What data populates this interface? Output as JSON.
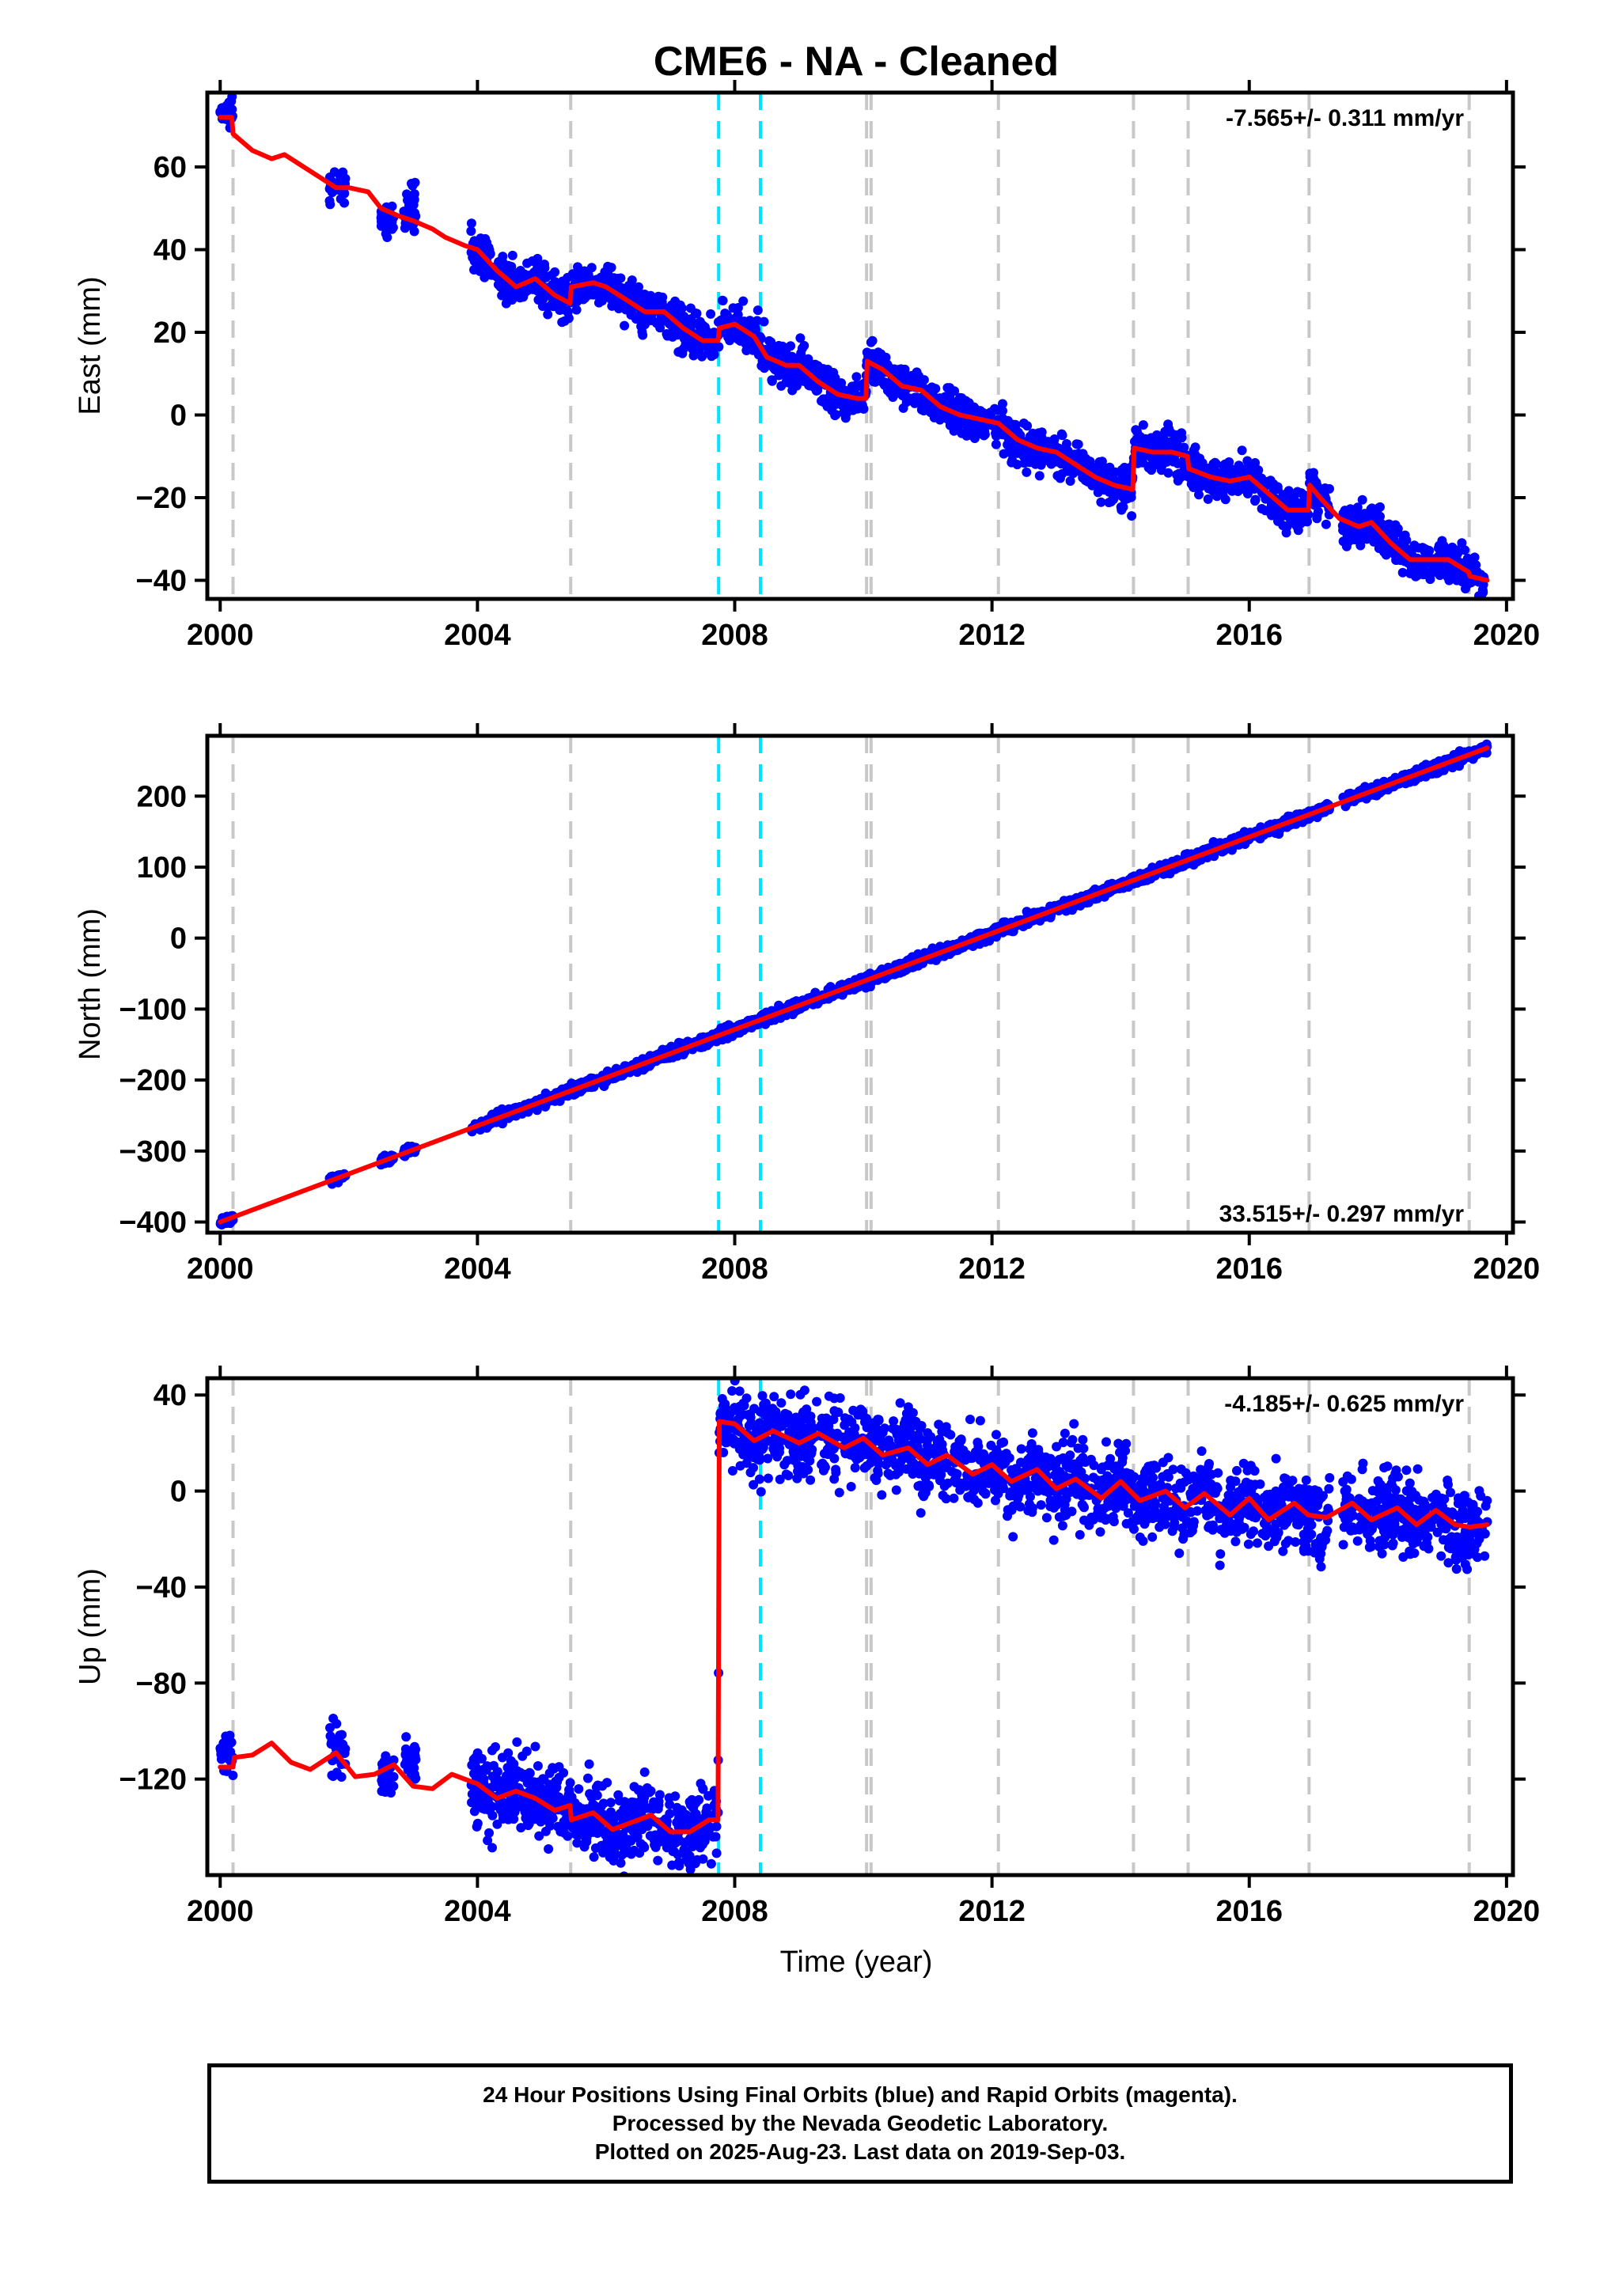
{
  "title": "CME6  - NA - Cleaned",
  "xlabel": "Time (year)",
  "footer": {
    "line1": "24 Hour Positions Using Final Orbits (blue) and Rapid Orbits (magenta).",
    "line2": "Processed by the Nevada Geodetic Laboratory.",
    "line3": "Plotted on 2025-Aug-23. Last data on 2019-Sep-03."
  },
  "colors": {
    "data_points": "#0000ff",
    "model_fit": "#ff0000",
    "equipment_change_lines": "#c8c8c8",
    "earthquake_lines": "#00e5ff"
  },
  "chart_data": [
    {
      "type": "scatter",
      "name": "east",
      "ylabel": "East (mm)",
      "rate_label": "-7.565+/- 0.311 mm/yr",
      "xlim": [
        1999.8,
        2020.1
      ],
      "ylim": [
        -44.5,
        78
      ],
      "xticks": [
        2000,
        2004,
        2008,
        2012,
        2016,
        2020
      ],
      "yticks": [
        -40,
        -20,
        0,
        20,
        40,
        60
      ],
      "grid": false,
      "gray_lines": [
        2000.2,
        2005.45,
        2010.05,
        2010.12,
        2012.1,
        2014.2,
        2015.05,
        2016.93,
        2019.42
      ],
      "cyan_lines": [
        2007.75,
        2008.4
      ],
      "fit": [
        [
          2000.0,
          72
        ],
        [
          2000.18,
          72
        ],
        [
          2000.2,
          68
        ],
        [
          2000.5,
          64
        ],
        [
          2000.8,
          62
        ],
        [
          2001.0,
          63
        ],
        [
          2001.2,
          61
        ],
        [
          2001.5,
          58
        ],
        [
          2001.8,
          55
        ],
        [
          2002.0,
          55
        ],
        [
          2002.3,
          54
        ],
        [
          2002.5,
          50
        ],
        [
          2002.8,
          48
        ],
        [
          2003.0,
          47
        ],
        [
          2003.3,
          45
        ],
        [
          2003.5,
          43
        ],
        [
          2003.8,
          41
        ],
        [
          2004.0,
          40
        ],
        [
          2004.3,
          35
        ],
        [
          2004.6,
          31
        ],
        [
          2004.9,
          33
        ],
        [
          2005.2,
          29
        ],
        [
          2005.44,
          27
        ],
        [
          2005.46,
          31
        ],
        [
          2005.8,
          32
        ],
        [
          2006.0,
          31
        ],
        [
          2006.3,
          28
        ],
        [
          2006.6,
          25
        ],
        [
          2006.9,
          25
        ],
        [
          2007.2,
          21
        ],
        [
          2007.5,
          18
        ],
        [
          2007.74,
          18
        ],
        [
          2007.76,
          21
        ],
        [
          2008.0,
          22
        ],
        [
          2008.3,
          19
        ],
        [
          2008.5,
          14
        ],
        [
          2008.8,
          12
        ],
        [
          2009.0,
          12
        ],
        [
          2009.3,
          8
        ],
        [
          2009.6,
          5
        ],
        [
          2009.9,
          4
        ],
        [
          2010.04,
          4
        ],
        [
          2010.06,
          13
        ],
        [
          2010.3,
          11
        ],
        [
          2010.6,
          7
        ],
        [
          2010.9,
          6
        ],
        [
          2011.2,
          2
        ],
        [
          2011.5,
          0
        ],
        [
          2011.8,
          -1
        ],
        [
          2012.1,
          -2
        ],
        [
          2012.4,
          -6
        ],
        [
          2012.7,
          -8
        ],
        [
          2013.0,
          -9
        ],
        [
          2013.3,
          -12
        ],
        [
          2013.6,
          -15
        ],
        [
          2013.9,
          -17
        ],
        [
          2014.19,
          -18
        ],
        [
          2014.21,
          -8
        ],
        [
          2014.5,
          -9
        ],
        [
          2014.8,
          -9
        ],
        [
          2015.04,
          -10
        ],
        [
          2015.06,
          -13
        ],
        [
          2015.4,
          -15
        ],
        [
          2015.7,
          -16
        ],
        [
          2016.0,
          -15
        ],
        [
          2016.3,
          -19
        ],
        [
          2016.6,
          -23
        ],
        [
          2016.92,
          -23
        ],
        [
          2016.94,
          -17
        ],
        [
          2017.1,
          -20
        ],
        [
          2017.4,
          -25
        ],
        [
          2017.7,
          -27
        ],
        [
          2017.9,
          -26
        ],
        [
          2018.2,
          -31
        ],
        [
          2018.5,
          -35
        ],
        [
          2018.8,
          -35
        ],
        [
          2019.1,
          -35
        ],
        [
          2019.41,
          -38
        ],
        [
          2019.43,
          -39
        ],
        [
          2019.7,
          -40
        ]
      ],
      "clusters": [
        [
          2000.0,
          2000.2,
          73,
          1.5
        ],
        [
          2001.7,
          2001.95,
          55,
          1.5
        ],
        [
          2002.5,
          2002.7,
          47,
          1.5
        ],
        [
          2002.85,
          2003.05,
          50,
          3
        ],
        [
          2003.9,
          2005.45,
          null,
          2.5
        ],
        [
          2005.45,
          2007.75,
          null,
          2.5
        ],
        [
          2007.75,
          2010.05,
          null,
          2.5
        ],
        [
          2010.05,
          2014.2,
          null,
          2.5
        ],
        [
          2014.2,
          2016.93,
          null,
          2.5
        ],
        [
          2016.93,
          2017.25,
          null,
          2.5
        ],
        [
          2017.45,
          2019.65,
          null,
          2.5
        ]
      ]
    },
    {
      "type": "scatter",
      "name": "north",
      "ylabel": "North (mm)",
      "rate_label": "33.515+/- 0.297 mm/yr",
      "xlim": [
        1999.8,
        2020.1
      ],
      "ylim": [
        -415,
        285
      ],
      "xticks": [
        2000,
        2004,
        2008,
        2012,
        2016,
        2020
      ],
      "yticks": [
        -400,
        -300,
        -200,
        -100,
        0,
        100,
        200
      ],
      "grid": false,
      "gray_lines": [
        2000.2,
        2005.45,
        2010.05,
        2010.12,
        2012.1,
        2014.2,
        2015.05,
        2016.93,
        2019.42
      ],
      "cyan_lines": [
        2007.75,
        2008.4
      ],
      "fit": [
        [
          2000.0,
          -400
        ],
        [
          2019.7,
          268
        ]
      ],
      "clusters": [
        [
          2000.0,
          2000.2,
          null,
          3
        ],
        [
          2001.7,
          2001.95,
          null,
          3
        ],
        [
          2002.5,
          2002.7,
          null,
          3
        ],
        [
          2002.85,
          2003.05,
          null,
          3
        ],
        [
          2003.9,
          2017.25,
          null,
          4
        ],
        [
          2017.45,
          2019.7,
          null,
          4
        ]
      ]
    },
    {
      "type": "scatter",
      "name": "up",
      "ylabel": "Up (mm)",
      "rate_label": "-4.185+/- 0.625 mm/yr",
      "xlim": [
        1999.8,
        2020.1
      ],
      "ylim": [
        -160,
        47
      ],
      "xticks": [
        2000,
        2004,
        2008,
        2012,
        2016,
        2020
      ],
      "yticks": [
        -120,
        -80,
        -40,
        0,
        40
      ],
      "grid": false,
      "gray_lines": [
        2000.2,
        2005.45,
        2010.05,
        2010.12,
        2012.1,
        2014.2,
        2015.05,
        2016.93,
        2019.42
      ],
      "cyan_lines": [
        2007.75,
        2008.4
      ],
      "fit": [
        [
          2000.0,
          -115
        ],
        [
          2000.2,
          -115
        ],
        [
          2000.22,
          -111
        ],
        [
          2000.5,
          -110
        ],
        [
          2000.8,
          -105
        ],
        [
          2001.1,
          -113
        ],
        [
          2001.4,
          -116
        ],
        [
          2001.8,
          -109
        ],
        [
          2002.1,
          -119
        ],
        [
          2002.4,
          -118
        ],
        [
          2002.7,
          -114
        ],
        [
          2003.0,
          -123
        ],
        [
          2003.3,
          -124
        ],
        [
          2003.6,
          -118
        ],
        [
          2004.0,
          -122
        ],
        [
          2004.3,
          -128
        ],
        [
          2004.6,
          -125
        ],
        [
          2004.9,
          -128
        ],
        [
          2005.2,
          -133
        ],
        [
          2005.44,
          -131
        ],
        [
          2005.46,
          -137
        ],
        [
          2005.8,
          -134
        ],
        [
          2006.1,
          -141
        ],
        [
          2006.4,
          -138
        ],
        [
          2006.7,
          -135
        ],
        [
          2007.0,
          -142
        ],
        [
          2007.3,
          -142
        ],
        [
          2007.6,
          -137
        ],
        [
          2007.74,
          -137
        ],
        [
          2007.76,
          29
        ],
        [
          2008.0,
          28
        ],
        [
          2008.3,
          21
        ],
        [
          2008.6,
          25
        ],
        [
          2009.0,
          20
        ],
        [
          2009.3,
          24
        ],
        [
          2009.7,
          18
        ],
        [
          2010.0,
          22
        ],
        [
          2010.3,
          15
        ],
        [
          2010.7,
          18
        ],
        [
          2011.0,
          11
        ],
        [
          2011.3,
          15
        ],
        [
          2011.7,
          7
        ],
        [
          2012.0,
          11
        ],
        [
          2012.3,
          4
        ],
        [
          2012.7,
          9
        ],
        [
          2013.0,
          1
        ],
        [
          2013.3,
          5
        ],
        [
          2013.7,
          -3
        ],
        [
          2014.0,
          4
        ],
        [
          2014.3,
          -4
        ],
        [
          2014.7,
          0
        ],
        [
          2015.0,
          -7
        ],
        [
          2015.3,
          -1
        ],
        [
          2015.7,
          -10
        ],
        [
          2016.0,
          -3
        ],
        [
          2016.3,
          -12
        ],
        [
          2016.7,
          -5
        ],
        [
          2016.92,
          -10
        ],
        [
          2017.2,
          -11
        ],
        [
          2017.6,
          -5
        ],
        [
          2017.9,
          -12
        ],
        [
          2018.3,
          -7
        ],
        [
          2018.6,
          -14
        ],
        [
          2018.9,
          -8
        ],
        [
          2019.2,
          -14
        ],
        [
          2019.43,
          -15
        ],
        [
          2019.7,
          -14
        ]
      ],
      "clusters": [
        [
          2000.0,
          2000.2,
          -110,
          5
        ],
        [
          2001.7,
          2001.95,
          -108,
          5
        ],
        [
          2002.5,
          2002.7,
          -118,
          4
        ],
        [
          2002.85,
          2003.05,
          -113,
          5
        ],
        [
          2003.9,
          2007.75,
          null,
          8
        ],
        [
          2007.75,
          2017.25,
          null,
          8
        ],
        [
          2017.45,
          2019.7,
          null,
          8
        ]
      ]
    }
  ]
}
